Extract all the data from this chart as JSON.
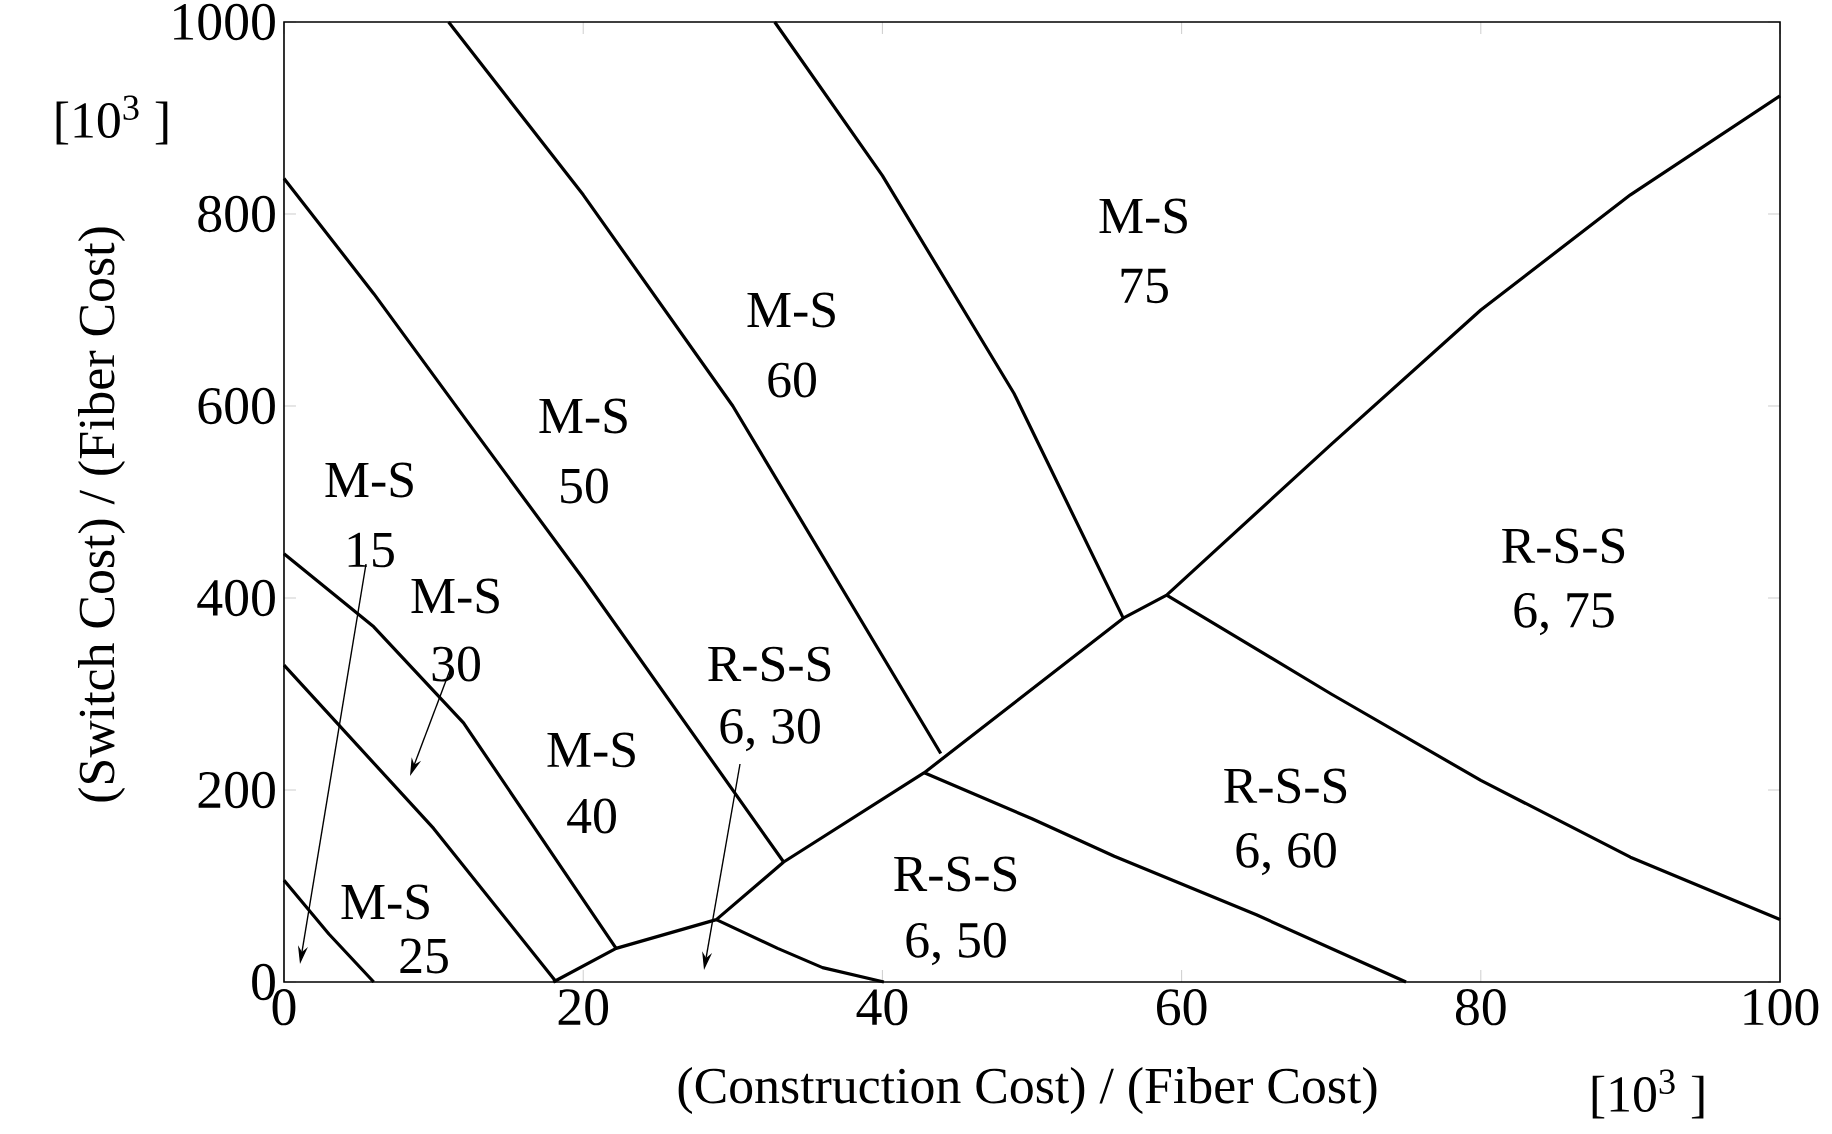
{
  "chart_data": {
    "type": "line",
    "xlabel": "(Construction Cost) / (Fiber Cost)",
    "ylabel": "(Switch Cost) / (Fiber Cost)",
    "xlim": [
      0,
      100
    ],
    "ylim": [
      0,
      1000
    ],
    "xticks": [
      0,
      20,
      40,
      60,
      80,
      100
    ],
    "yticks": [
      0,
      200,
      400,
      600,
      800,
      1000
    ],
    "grid": false,
    "series": [
      {
        "color": "#000000",
        "x": [
          0,
          3,
          6
        ],
        "values": [
          106,
          50,
          0
        ]
      },
      {
        "color": "#000000",
        "x": [
          0,
          4,
          10,
          18.2
        ],
        "values": [
          330,
          262,
          160,
          0
        ]
      },
      {
        "color": "#000000",
        "x": [
          0,
          6,
          12,
          22.2
        ],
        "values": [
          446,
          370,
          270,
          35
        ]
      },
      {
        "color": "#000000",
        "x": [
          0,
          6,
          12.2,
          20,
          33.4
        ],
        "values": [
          837,
          717,
          585,
          420,
          125
        ]
      },
      {
        "color": "#000000",
        "x": [
          11,
          20,
          30,
          43.9
        ],
        "values": [
          1000,
          820,
          600,
          238
        ]
      },
      {
        "color": "#000000",
        "x": [
          32.8,
          40,
          48.8,
          56.1
        ],
        "values": [
          1000,
          840,
          613,
          379
        ]
      },
      {
        "color": "#000000",
        "x": [
          18,
          22.2,
          28.9,
          33.4,
          42.8,
          56.1,
          59,
          70,
          80,
          90,
          100
        ],
        "values": [
          0,
          35,
          65,
          125,
          218,
          379,
          403,
          560,
          700,
          820,
          923
        ]
      },
      {
        "color": "#000000",
        "x": [
          28.9,
          33,
          36,
          40.1
        ],
        "values": [
          65,
          35,
          15,
          0
        ]
      },
      {
        "color": "#000000",
        "x": [
          42.8,
          50,
          55.5,
          65,
          75
        ],
        "values": [
          218,
          170,
          131,
          70,
          0
        ]
      },
      {
        "color": "#000000",
        "x": [
          59,
          70,
          80,
          90,
          100
        ],
        "values": [
          403,
          300,
          210,
          130,
          65
        ]
      }
    ],
    "annotations": [
      "[10$^{3}$ ]",
      "[10$^{3}$ ]",
      "M-S",
      "75",
      "M-S",
      "60",
      "M-S",
      "50",
      "M-S",
      "15",
      "M-S",
      "30",
      "M-S",
      "40",
      "M-S",
      "25",
      "R-S-S",
      "6, 30",
      "R-S-S",
      "6, 50",
      "R-S-S",
      "6, 60",
      "R-S-S",
      "6, 75"
    ]
  }
}
